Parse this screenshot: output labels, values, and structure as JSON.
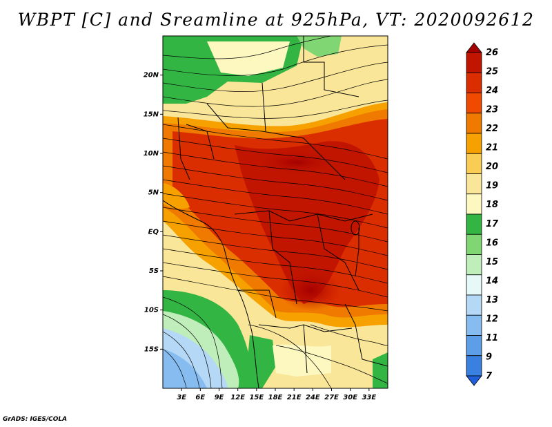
{
  "title": "WBPT [C] and Sreamline at 925hPa, VT: 2020092612",
  "footer": "GrADS: IGES/COLA",
  "map": {
    "lat_labels": [
      "20N",
      "15N",
      "10N",
      "5N",
      "EQ",
      "5S",
      "10S",
      "15S"
    ],
    "lat_values": [
      20,
      15,
      10,
      5,
      0,
      -5,
      -10,
      -15
    ],
    "lon_labels": [
      "3E",
      "6E",
      "9E",
      "12E",
      "15E",
      "18E",
      "21E",
      "24E",
      "27E",
      "30E",
      "33E"
    ],
    "lon_values": [
      3,
      6,
      9,
      12,
      15,
      18,
      21,
      24,
      27,
      30,
      33
    ],
    "lat_range": [
      -20,
      25
    ],
    "lon_range": [
      0,
      36
    ]
  },
  "colorbar": {
    "levels": [
      "26",
      "25",
      "24",
      "23",
      "22",
      "21",
      "20",
      "19",
      "18",
      "17",
      "16",
      "15",
      "14",
      "13",
      "12",
      "11",
      "9",
      "7"
    ],
    "colors": [
      "#a50000",
      "#c11500",
      "#db2e00",
      "#f04a00",
      "#f07a00",
      "#f7a100",
      "#f9cc53",
      "#fae698",
      "#fdf7c0",
      "#33b544",
      "#7fd672",
      "#bfeebb",
      "#e6f8f8",
      "#b4d8f5",
      "#86bcf0",
      "#5c9fe8",
      "#3a80e0",
      "#1f5fd8"
    ]
  }
}
